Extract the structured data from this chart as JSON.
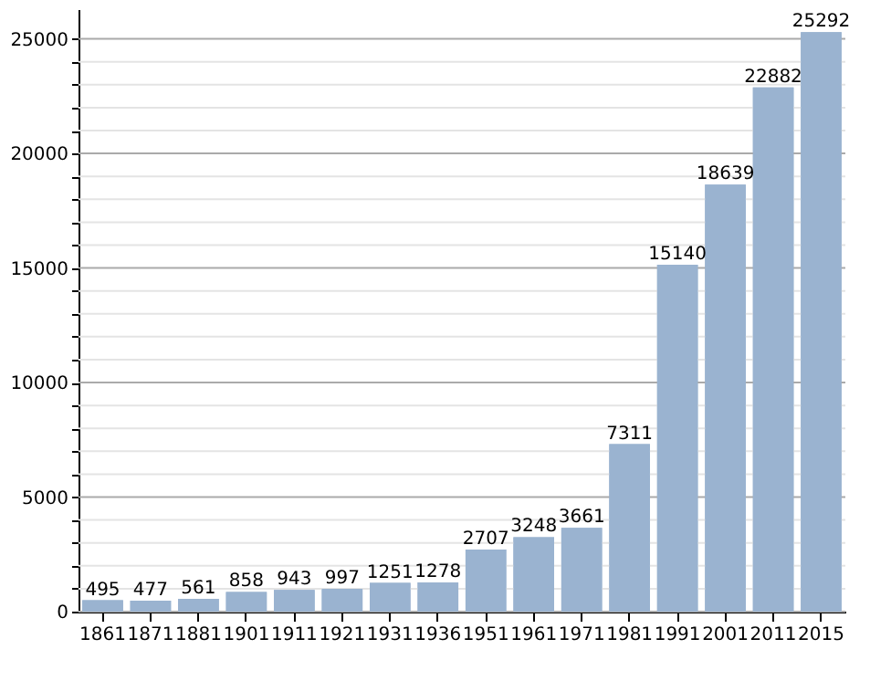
{
  "chart_data": {
    "type": "bar",
    "categories": [
      "1861",
      "1871",
      "1881",
      "1901",
      "1911",
      "1921",
      "1931",
      "1936",
      "1951",
      "1961",
      "1971",
      "1981",
      "1991",
      "2001",
      "2011",
      "2015"
    ],
    "values": [
      495,
      477,
      561,
      858,
      943,
      997,
      1251,
      1278,
      2707,
      3248,
      3661,
      7311,
      15140,
      18639,
      22882,
      25292
    ],
    "color": "#9ab3d0",
    "data_labels": true,
    "grid": "y",
    "ylim": [
      0,
      26300
    ],
    "yticks": [
      0,
      {
        "value": 1000,
        "label": null
      },
      {
        "value": 2000,
        "label": null
      },
      {
        "value": 3000,
        "label": null
      },
      {
        "value": 4000,
        "label": null
      },
      5000,
      {
        "value": 6000,
        "label": null
      },
      {
        "value": 7000,
        "label": null
      },
      {
        "value": 8000,
        "label": null
      },
      {
        "value": 9000,
        "label": null
      },
      10000,
      {
        "value": 11000,
        "label": null
      },
      {
        "value": 12000,
        "label": null
      },
      {
        "value": 13000,
        "label": null
      },
      {
        "value": 14000,
        "label": null
      },
      15000,
      {
        "value": 16000,
        "label": null
      },
      {
        "value": 17000,
        "label": null
      },
      {
        "value": 18000,
        "label": null
      },
      {
        "value": 19000,
        "label": null
      },
      20000,
      {
        "value": 21000,
        "label": null
      },
      {
        "value": 22000,
        "label": null
      },
      {
        "value": 23000,
        "label": null
      },
      {
        "value": 24000,
        "label": null
      },
      25000
    ]
  }
}
